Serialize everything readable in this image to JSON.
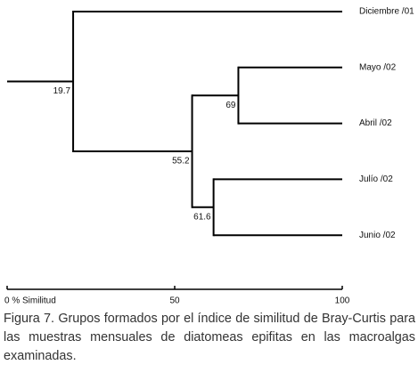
{
  "chart_data": {
    "type": "dendrogram",
    "leaves": [
      "Diciembre /01",
      "Mayo /02",
      "Abril /02",
      "Julío /02",
      "Junio /02"
    ],
    "nodes": [
      {
        "value": 69,
        "children": [
          "leaf1",
          "leaf2"
        ]
      },
      {
        "value": 61.6,
        "children": [
          "leaf3",
          "leaf4"
        ]
      },
      {
        "value": 55.2,
        "children": [
          "node0",
          "node1"
        ]
      },
      {
        "value": 19.7,
        "children": [
          "leaf0",
          "node2"
        ]
      }
    ],
    "xlim": [
      0,
      100
    ],
    "xticks": [
      {
        "value": 0,
        "label": "0 % Similitud"
      },
      50,
      100
    ],
    "color": "#000000"
  },
  "caption": "Figura 7. Grupos formados por el índice de similitud de Bray-Curtis para las muestras mensuales de diatomeas epifitas en las macroalgas examinadas."
}
